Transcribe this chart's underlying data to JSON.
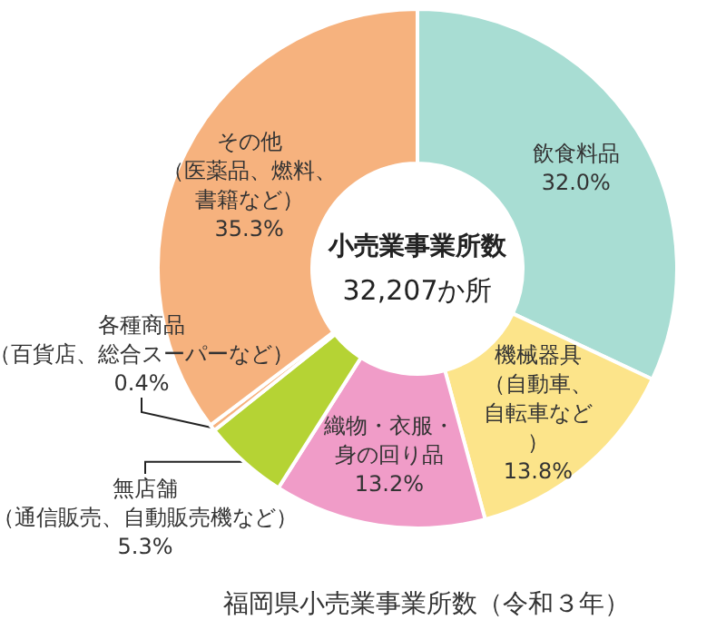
{
  "chart_data": {
    "type": "donut",
    "title": "福岡県小売業事業所数（令和３年）",
    "annotations": [
      "小売業事業所数",
      "32,207か所"
    ],
    "categories": [
      "飲食料品",
      "機械器具（自動車、自転車など）",
      "織物・衣服・身の回り品",
      "無店舗（通信販売、自動販売機など）",
      "各種商品（百貨店、総合スーパーなど）",
      "その他（医薬品、燃料、書籍など）"
    ],
    "values": [
      32.0,
      13.8,
      13.2,
      5.3,
      0.4,
      35.3
    ],
    "value_labels": [
      "32.0%",
      "13.8%",
      "13.2%",
      "5.3%",
      "0.4%",
      "35.3%"
    ],
    "colors": [
      "#a8ddd3",
      "#fce48a",
      "#f09cc8",
      "#b5d334",
      "#f6b27e",
      "#f6b27e"
    ],
    "legend": false
  }
}
